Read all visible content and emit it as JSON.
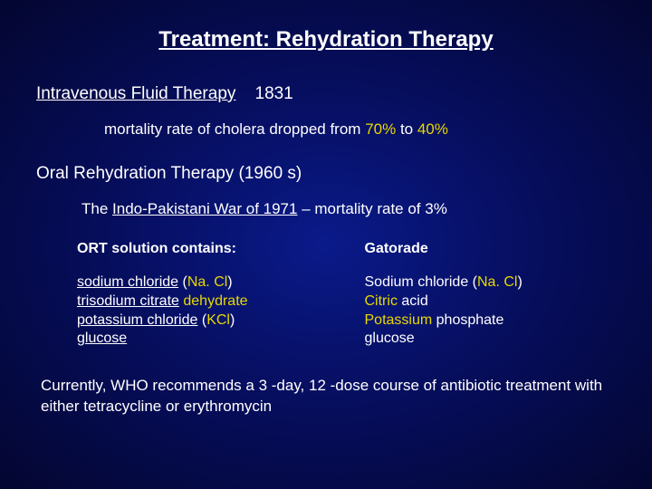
{
  "colors": {
    "background_center": "#0a1a8a",
    "background_outer": "#030630",
    "text_white": "#ffffff",
    "text_yellow": "#e8d800"
  },
  "typography": {
    "font_family": "Arial, sans-serif",
    "title_size": 24,
    "section_size": 19,
    "body_size": 17,
    "col_size": 16
  },
  "title": "Treatment: Rehydration Therapy",
  "iv_section": {
    "label": "Intravenous Fluid Therapy",
    "year": "1831",
    "mortality_prefix": "mortality rate of cholera dropped from ",
    "mortality_from": "70%",
    "mortality_mid": " to ",
    "mortality_to": "40%"
  },
  "oral_section": {
    "label": "Oral Rehydration Therapy (1960 s)",
    "war_prefix": "The ",
    "war_name": "Indo-Pakistani War of 1971",
    "war_suffix": " – mortality rate of 3%"
  },
  "ort_column": {
    "header": "ORT solution contains:",
    "items": [
      {
        "u1": "sodium chloride",
        "p1": " (",
        "y": "Na. Cl",
        "p2": ")"
      },
      {
        "u1": "trisodium citrate",
        "p1": " ",
        "y": "dehydrate",
        "p2": ""
      },
      {
        "u1": "potassium chloride",
        "p1": " (",
        "y": "KCl",
        "p2": ")"
      },
      {
        "u1": "glucose",
        "p1": "",
        "y": "",
        "p2": ""
      }
    ]
  },
  "gatorade_column": {
    "header": "Gatorade",
    "items": [
      {
        "w": "Sodium chloride (",
        "y": "Na. Cl",
        "w2": ")"
      },
      {
        "w": "",
        "y": "Citric",
        "w2": " acid"
      },
      {
        "w": "",
        "y": "Potassium",
        "w2": " phosphate"
      },
      {
        "w": "glucose",
        "y": "",
        "w2": ""
      }
    ]
  },
  "footer": "Currently, WHO recommends a 3 -day, 12 -dose course of antibiotic treatment with either tetracycline or erythromycin"
}
